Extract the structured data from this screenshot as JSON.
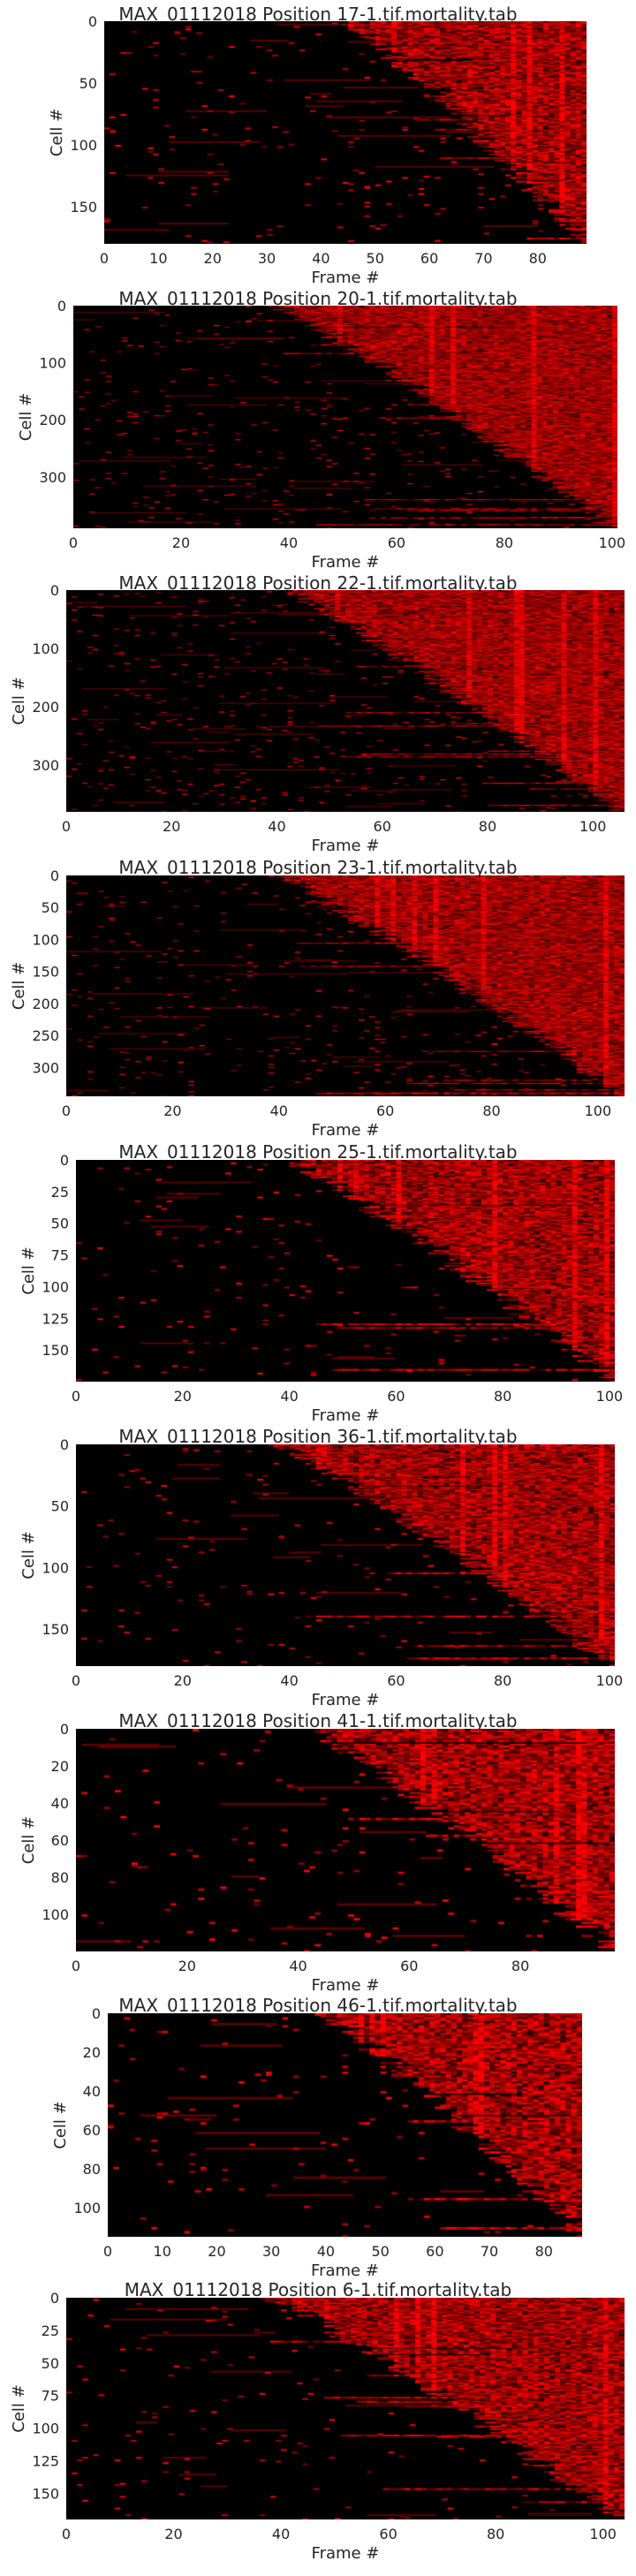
{
  "figure": {
    "background": "#ffffff",
    "colormap": [
      "#000000",
      "#ff0000"
    ]
  },
  "chart_data": [
    {
      "type": "heatmap",
      "title": "MAX_01112018 Position 17-1.tif.mortality.tab",
      "xlabel": "Frame #",
      "ylabel": "Cell #",
      "xlim": [
        0,
        89
      ],
      "ylim": [
        180,
        0
      ],
      "xticks": [
        "0",
        "10",
        "20",
        "30",
        "40",
        "50",
        "60",
        "70",
        "80"
      ],
      "yticks": [
        "0",
        "50",
        "100",
        "150"
      ],
      "n_cells": 180,
      "n_frames": 89,
      "onset_frame_range": [
        45,
        89
      ],
      "colorscale": [
        "#000000",
        "#ff0000"
      ]
    },
    {
      "type": "heatmap",
      "title": "MAX_01112018 Position 20-1.tif.mortality.tab",
      "xlabel": "Frame #",
      "ylabel": "Cell #",
      "xlim": [
        0,
        101
      ],
      "ylim": [
        390,
        0
      ],
      "xticks": [
        "0",
        "20",
        "40",
        "60",
        "80",
        "100"
      ],
      "yticks": [
        "0",
        "100",
        "200",
        "300"
      ],
      "n_cells": 390,
      "n_frames": 101,
      "onset_frame_range": [
        38,
        101
      ],
      "colorscale": [
        "#000000",
        "#ff0000"
      ]
    },
    {
      "type": "heatmap",
      "title": "MAX_01112018 Position 22-1.tif.mortality.tab",
      "xlabel": "Frame #",
      "ylabel": "Cell #",
      "xlim": [
        0,
        106
      ],
      "ylim": [
        380,
        0
      ],
      "xticks": [
        "0",
        "20",
        "40",
        "60",
        "80",
        "100"
      ],
      "yticks": [
        "0",
        "100",
        "200",
        "300"
      ],
      "n_cells": 380,
      "n_frames": 106,
      "onset_frame_range": [
        42,
        106
      ],
      "colorscale": [
        "#000000",
        "#ff0000"
      ]
    },
    {
      "type": "heatmap",
      "title": "MAX_01112018 Position 23-1.tif.mortality.tab",
      "xlabel": "Frame #",
      "ylabel": "Cell #",
      "xlim": [
        0,
        105
      ],
      "ylim": [
        345,
        0
      ],
      "xticks": [
        "0",
        "20",
        "40",
        "60",
        "80",
        "100"
      ],
      "yticks": [
        "0",
        "50",
        "100",
        "150",
        "200",
        "250",
        "300"
      ],
      "n_cells": 345,
      "n_frames": 105,
      "onset_frame_range": [
        40,
        105
      ],
      "colorscale": [
        "#000000",
        "#ff0000"
      ]
    },
    {
      "type": "heatmap",
      "title": "MAX_01112018 Position 25-1.tif.mortality.tab",
      "xlabel": "Frame #",
      "ylabel": "Cell #",
      "xlim": [
        0,
        101
      ],
      "ylim": [
        175,
        0
      ],
      "xticks": [
        "0",
        "20",
        "40",
        "60",
        "80",
        "100"
      ],
      "yticks": [
        "0",
        "25",
        "50",
        "75",
        "100",
        "125",
        "150"
      ],
      "n_cells": 175,
      "n_frames": 101,
      "onset_frame_range": [
        40,
        101
      ],
      "colorscale": [
        "#000000",
        "#ff0000"
      ]
    },
    {
      "type": "heatmap",
      "title": "MAX_01112018 Position 36-1.tif.mortality.tab",
      "xlabel": "Frame #",
      "ylabel": "Cell #",
      "xlim": [
        0,
        101
      ],
      "ylim": [
        180,
        0
      ],
      "xticks": [
        "0",
        "20",
        "40",
        "60",
        "80",
        "100"
      ],
      "yticks": [
        "0",
        "50",
        "100",
        "150"
      ],
      "n_cells": 180,
      "n_frames": 101,
      "onset_frame_range": [
        38,
        101
      ],
      "colorscale": [
        "#000000",
        "#ff0000"
      ]
    },
    {
      "type": "heatmap",
      "title": "MAX_01112018 Position 41-1.tif.mortality.tab",
      "xlabel": "Frame #",
      "ylabel": "Cell #",
      "xlim": [
        0,
        97
      ],
      "ylim": [
        120,
        0
      ],
      "xticks": [
        "0",
        "20",
        "40",
        "60",
        "80"
      ],
      "yticks": [
        "0",
        "20",
        "40",
        "60",
        "80",
        "100"
      ],
      "n_cells": 120,
      "n_frames": 97,
      "onset_frame_range": [
        42,
        97
      ],
      "colorscale": [
        "#000000",
        "#ff0000"
      ]
    },
    {
      "type": "heatmap",
      "title": "MAX_01112018 Position 46-1.tif.mortality.tab",
      "xlabel": "Frame #",
      "ylabel": "Cell #",
      "xlim": [
        0,
        87
      ],
      "ylim": [
        115,
        0
      ],
      "xticks": [
        "0",
        "10",
        "20",
        "30",
        "40",
        "50",
        "60",
        "70",
        "80"
      ],
      "yticks": [
        "0",
        "20",
        "40",
        "60",
        "80",
        "100"
      ],
      "n_cells": 115,
      "n_frames": 87,
      "onset_frame_range": [
        40,
        87
      ],
      "colorscale": [
        "#000000",
        "#ff0000"
      ]
    },
    {
      "type": "heatmap",
      "title": "MAX_01112018 Position 6-1.tif.mortality.tab",
      "xlabel": "Frame #",
      "ylabel": "Cell #",
      "xlim": [
        0,
        104
      ],
      "ylim": [
        170,
        0
      ],
      "xticks": [
        "0",
        "20",
        "40",
        "60",
        "80",
        "100"
      ],
      "yticks": [
        "0",
        "25",
        "50",
        "75",
        "100",
        "125",
        "150"
      ],
      "n_cells": 170,
      "n_frames": 104,
      "onset_frame_range": [
        38,
        104
      ],
      "colorscale": [
        "#000000",
        "#ff0000"
      ]
    }
  ]
}
